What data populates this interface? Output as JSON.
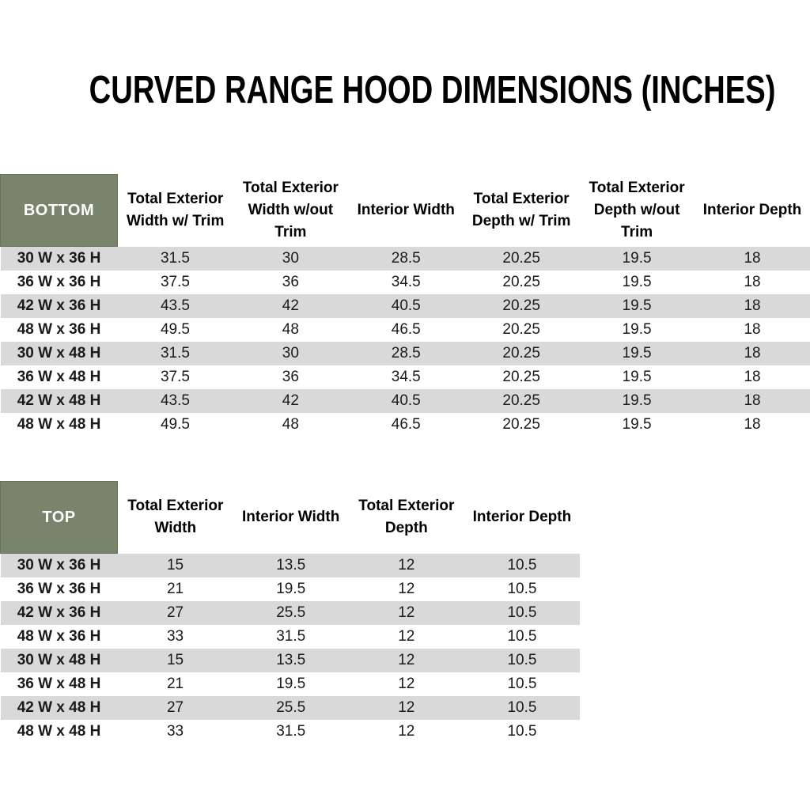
{
  "title": "CURVED RANGE HOOD DIMENSIONS (INCHES)",
  "colors": {
    "header_green": "#78846C",
    "shaded_row_gray": "#D9D9D9",
    "text": "#1a1a1a"
  },
  "bottom_table": {
    "corner_label": "BOTTOM",
    "columns": [
      "Total Exterior Width w/ Trim",
      "Total Exterior Width w/out Trim",
      "Interior Width",
      "Total Exterior Depth w/ Trim",
      "Total Exterior Depth w/out Trim",
      "Interior Depth"
    ],
    "rows": [
      {
        "label": "30 W x 36 H",
        "values": [
          "31.5",
          "30",
          "28.5",
          "20.25",
          "19.5",
          "18"
        ]
      },
      {
        "label": "36 W x 36 H",
        "values": [
          "37.5",
          "36",
          "34.5",
          "20.25",
          "19.5",
          "18"
        ]
      },
      {
        "label": "42 W x 36 H",
        "values": [
          "43.5",
          "42",
          "40.5",
          "20.25",
          "19.5",
          "18"
        ]
      },
      {
        "label": "48 W x 36 H",
        "values": [
          "49.5",
          "48",
          "46.5",
          "20.25",
          "19.5",
          "18"
        ]
      },
      {
        "label": "30 W x 48 H",
        "values": [
          "31.5",
          "30",
          "28.5",
          "20.25",
          "19.5",
          "18"
        ]
      },
      {
        "label": "36 W x 48 H",
        "values": [
          "37.5",
          "36",
          "34.5",
          "20.25",
          "19.5",
          "18"
        ]
      },
      {
        "label": "42 W x 48 H",
        "values": [
          "43.5",
          "42",
          "40.5",
          "20.25",
          "19.5",
          "18"
        ]
      },
      {
        "label": "48 W x 48 H",
        "values": [
          "49.5",
          "48",
          "46.5",
          "20.25",
          "19.5",
          "18"
        ]
      }
    ]
  },
  "top_table": {
    "corner_label": "TOP",
    "columns": [
      "Total Exterior Width",
      "Interior Width",
      "Total Exterior Depth",
      "Interior Depth"
    ],
    "rows": [
      {
        "label": "30 W x 36 H",
        "values": [
          "15",
          "13.5",
          "12",
          "10.5"
        ]
      },
      {
        "label": "36 W x 36 H",
        "values": [
          "21",
          "19.5",
          "12",
          "10.5"
        ]
      },
      {
        "label": "42 W x 36 H",
        "values": [
          "27",
          "25.5",
          "12",
          "10.5"
        ]
      },
      {
        "label": "48 W x 36 H",
        "values": [
          "33",
          "31.5",
          "12",
          "10.5"
        ]
      },
      {
        "label": "30 W x 48 H",
        "values": [
          "15",
          "13.5",
          "12",
          "10.5"
        ]
      },
      {
        "label": "36 W x 48 H",
        "values": [
          "21",
          "19.5",
          "12",
          "10.5"
        ]
      },
      {
        "label": "42 W x 48 H",
        "values": [
          "27",
          "25.5",
          "12",
          "10.5"
        ]
      },
      {
        "label": "48 W x 48 H",
        "values": [
          "33",
          "31.5",
          "12",
          "10.5"
        ]
      }
    ]
  }
}
